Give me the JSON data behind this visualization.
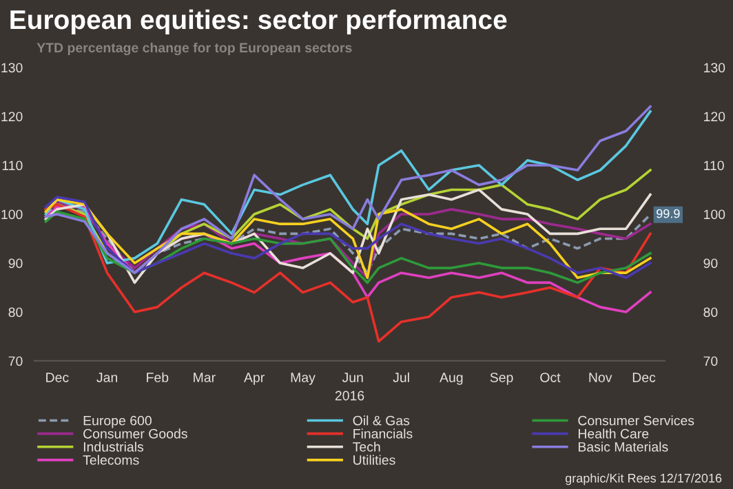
{
  "chart_data": {
    "type": "line",
    "title": "European equities: sector performance",
    "subtitle": "YTD percentage change for top European sectors",
    "xlabel": "2016",
    "x": [
      "2015-12-08",
      "2015-12-15",
      "2016-01-01",
      "2016-01-15",
      "2016-02-01",
      "2016-02-15",
      "2016-03-01",
      "2016-03-15",
      "2016-04-01",
      "2016-04-15",
      "2016-05-01",
      "2016-05-15",
      "2016-06-01",
      "2016-06-15",
      "2016-06-24",
      "2016-07-01",
      "2016-07-15",
      "2016-08-01",
      "2016-08-15",
      "2016-09-01",
      "2016-09-15",
      "2016-10-01",
      "2016-10-15",
      "2016-11-01",
      "2016-11-15",
      "2016-12-01",
      "2016-12-16"
    ],
    "series": [
      {
        "name": "Europe 600",
        "color": "#8a9bb0",
        "line_style": "dashed",
        "values": [
          100,
          101.5,
          100.5,
          95,
          88,
          92,
          94,
          95,
          94,
          97,
          96,
          96,
          97,
          92,
          88,
          93,
          97,
          96,
          96,
          95,
          96,
          93,
          95,
          93,
          95,
          95,
          99.9
        ]
      },
      {
        "name": "Consumer Goods",
        "color": "#9c2a8e",
        "values": [
          100.5,
          102.5,
          101,
          94,
          89,
          93,
          97,
          98,
          94,
          96,
          95,
          94,
          95,
          90,
          87,
          96,
          100,
          100,
          101,
          100,
          99,
          99,
          98,
          97,
          96,
          95,
          98
        ]
      },
      {
        "name": "Industrials",
        "color": "#b5d334",
        "values": [
          101,
          102,
          100,
          92,
          88,
          92,
          96,
          98,
          95,
          100,
          102,
          99,
          101,
          97,
          95,
          100,
          102,
          104,
          105,
          105,
          106,
          102,
          101,
          99,
          103,
          105,
          109
        ]
      },
      {
        "name": "Telecoms",
        "color": "#e040c0",
        "values": [
          99.5,
          101.5,
          101.5,
          94,
          88,
          92,
          95,
          96,
          93,
          94,
          90,
          91,
          92,
          88,
          83,
          86,
          88,
          87,
          88,
          87,
          88,
          86,
          86,
          83,
          81,
          80,
          84
        ]
      },
      {
        "name": "Oil & Gas",
        "color": "#5ac8e0",
        "values": [
          100,
          103,
          101,
          90,
          91,
          94,
          103,
          102,
          96,
          105,
          104,
          106,
          108,
          101,
          98,
          110,
          113,
          105,
          109,
          110,
          106,
          111,
          110,
          107,
          109,
          114,
          121
        ]
      },
      {
        "name": "Financials",
        "color": "#e8302a",
        "values": [
          101,
          102,
          99.5,
          88,
          80,
          81,
          85,
          88,
          86,
          84,
          88,
          84,
          86,
          82,
          83,
          74,
          78,
          79,
          83,
          84,
          83,
          84,
          85,
          83,
          89,
          88,
          96
        ]
      },
      {
        "name": "Tech",
        "color": "#e8e0d8",
        "values": [
          99,
          101,
          102,
          96,
          86,
          92,
          95,
          96,
          94,
          96,
          90,
          89,
          92,
          88,
          97,
          92,
          103,
          104,
          103,
          105,
          101,
          100,
          96,
          96,
          97,
          97,
          104
        ]
      },
      {
        "name": "Utilities",
        "color": "#f5d020",
        "values": [
          100.5,
          103,
          102,
          96,
          90,
          93,
          96,
          96,
          94,
          99,
          98,
          98,
          99,
          95,
          87,
          100,
          101,
          98,
          97,
          99,
          96,
          98,
          94,
          87,
          88,
          88,
          91
        ]
      },
      {
        "name": "Consumer Services",
        "color": "#2e9a3a",
        "values": [
          98.5,
          100.5,
          99,
          91,
          88,
          90,
          93,
          95,
          94,
          95,
          94,
          94,
          95,
          89,
          86,
          89,
          91,
          89,
          89,
          90,
          89,
          89,
          88,
          86,
          88,
          89,
          92
        ]
      },
      {
        "name": "Health Care",
        "color": "#4a3ab0",
        "values": [
          101.5,
          103.5,
          102.5,
          93,
          88,
          90,
          92,
          94,
          92,
          91,
          94,
          96,
          96,
          93,
          93,
          95,
          98,
          96,
          95,
          94,
          95,
          93,
          91,
          88,
          89,
          87,
          90
        ]
      },
      {
        "name": "Basic Materials",
        "color": "#8a7de0",
        "values": [
          99.5,
          100,
          98.5,
          92,
          88,
          92,
          97,
          99,
          95,
          108,
          103,
          99,
          100,
          97,
          103,
          99,
          107,
          108,
          109,
          106,
          107,
          110,
          110,
          109,
          115,
          117,
          122
        ]
      }
    ],
    "xlim": [
      "2015-12-01",
      "2016-12-25"
    ],
    "xticks": [
      {
        "value": "2015-12-15",
        "label": "Dec"
      },
      {
        "value": "2016-01-15",
        "label": "Jan"
      },
      {
        "value": "2016-02-15",
        "label": "Feb"
      },
      {
        "value": "2016-03-15",
        "label": "Mar"
      },
      {
        "value": "2016-04-15",
        "label": "Apr"
      },
      {
        "value": "2016-05-15",
        "label": "May"
      },
      {
        "value": "2016-06-15",
        "label": "Jun"
      },
      {
        "value": "2016-07-15",
        "label": "Jul"
      },
      {
        "value": "2016-08-15",
        "label": "Aug"
      },
      {
        "value": "2016-09-15",
        "label": "Sep"
      },
      {
        "value": "2016-10-15",
        "label": "Oct"
      },
      {
        "value": "2016-11-15",
        "label": "Nov"
      },
      {
        "value": "2016-12-12",
        "label": "Dec"
      }
    ],
    "ylim": [
      70,
      130
    ],
    "yticks": [
      70,
      80,
      90,
      100,
      110,
      120,
      130
    ],
    "y2lim": [
      70,
      130
    ],
    "y2ticks": [
      70,
      80,
      90,
      100,
      110,
      120,
      130
    ],
    "grid": false,
    "legend": "bottom",
    "annotations": [
      {
        "text": "99.9",
        "x": "2016-12-16",
        "y": 99.9
      },
      "graphic/Kit Rees 12/17/2016"
    ]
  }
}
